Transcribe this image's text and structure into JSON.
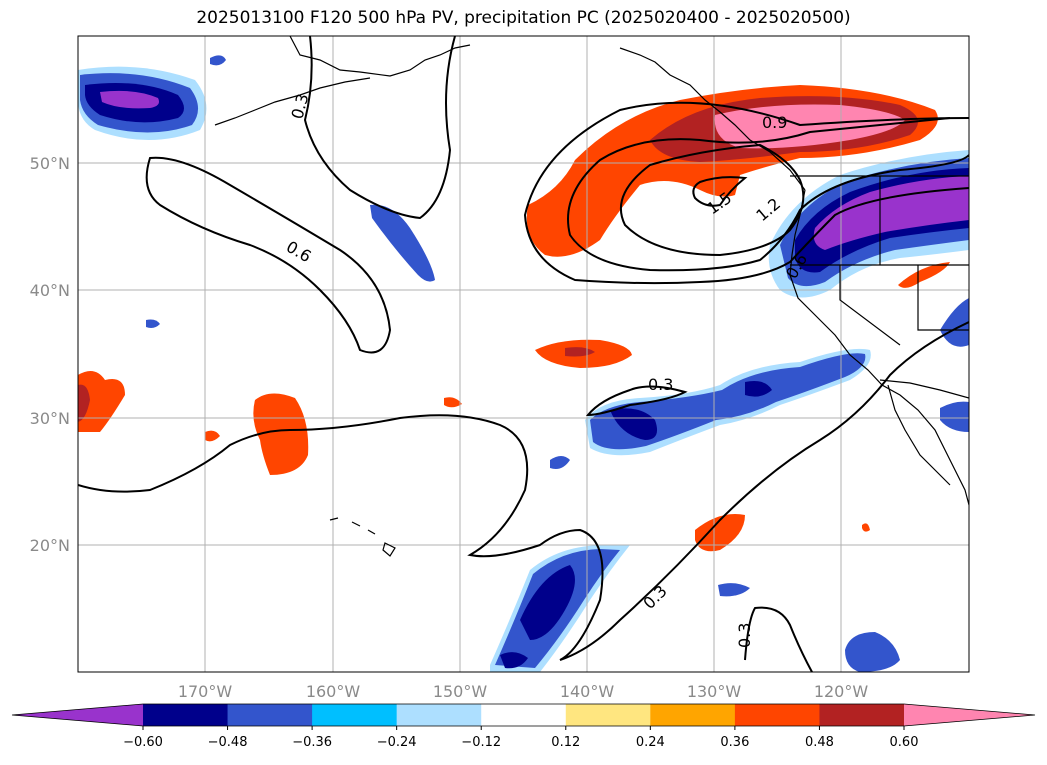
{
  "title": "2025013100 F120 500 hPa PV, precipitation PC (2025020400 - 2025020500)",
  "map": {
    "lat_labels": [
      "50°N",
      "40°N",
      "30°N",
      "20°N"
    ],
    "lon_labels": [
      "170°W",
      "160°W",
      "150°W",
      "140°W",
      "130°W",
      "120°W"
    ],
    "pv_contour_labels": [
      "0.3",
      "0.6",
      "0.9",
      "1.2",
      "1.5",
      "0.3",
      "0.3",
      "0.3",
      "0.6"
    ],
    "colors": {
      "grid": "#b0b0b0",
      "label": "#8a8a8a",
      "pv_contour": "#000000"
    }
  },
  "colorbar": {
    "ticks": [
      "−0.60",
      "−0.48",
      "−0.36",
      "−0.24",
      "−0.12",
      "0.12",
      "0.24",
      "0.36",
      "0.48",
      "0.60"
    ],
    "colors": [
      "#9933CC",
      "#00008B",
      "#3355CC",
      "#00BFFF",
      "#ADDFFF",
      "#FFFFFF",
      "#FFE680",
      "#FFA500",
      "#FF4500",
      "#B22222",
      "#FF85B0",
      "#FF85B0"
    ]
  }
}
